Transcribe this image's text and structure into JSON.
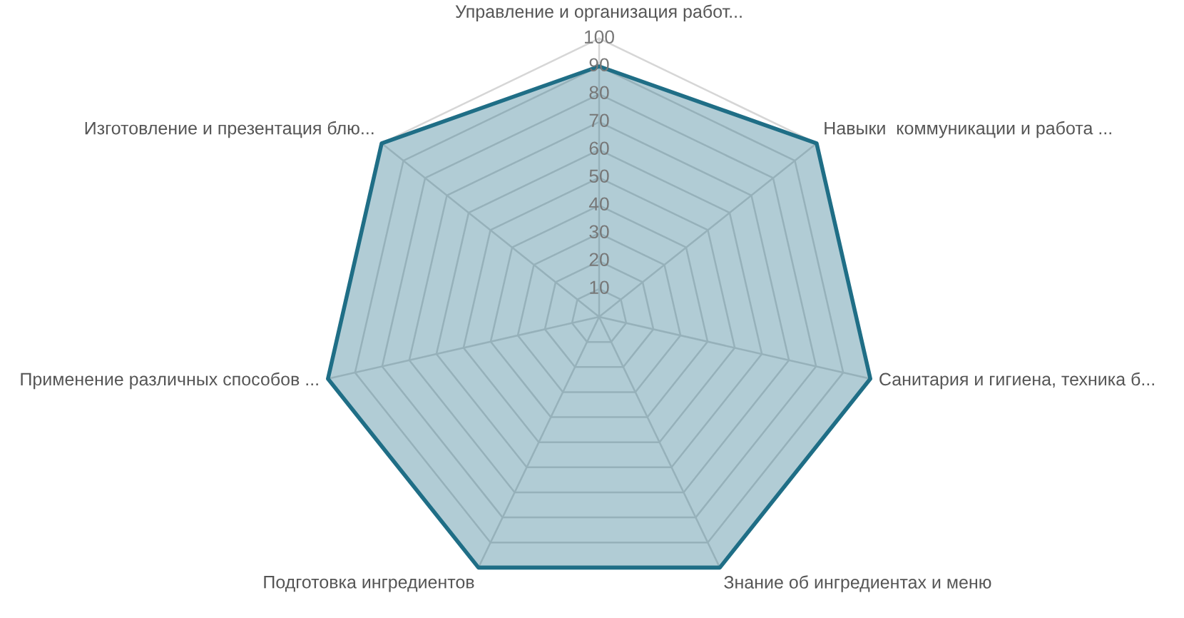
{
  "chart_data": {
    "type": "radar",
    "categories": [
      "Управление и организация работ...",
      "Навыки  коммуникации и работа ...",
      "Санитария и гигиена, техника б...",
      "Знание об ингредиентах и меню",
      "Подготовка ингредиентов",
      "Применение различных способов ...",
      "Изготовление и презентация блю..."
    ],
    "series": [
      {
        "color": "#1f6e86",
        "values": [
          90,
          100,
          100,
          100,
          100,
          100,
          100
        ]
      }
    ],
    "ylim": [
      0,
      100
    ],
    "yticks": [
      10,
      20,
      30,
      40,
      50,
      60,
      70,
      80,
      90,
      100
    ],
    "grid": true
  }
}
